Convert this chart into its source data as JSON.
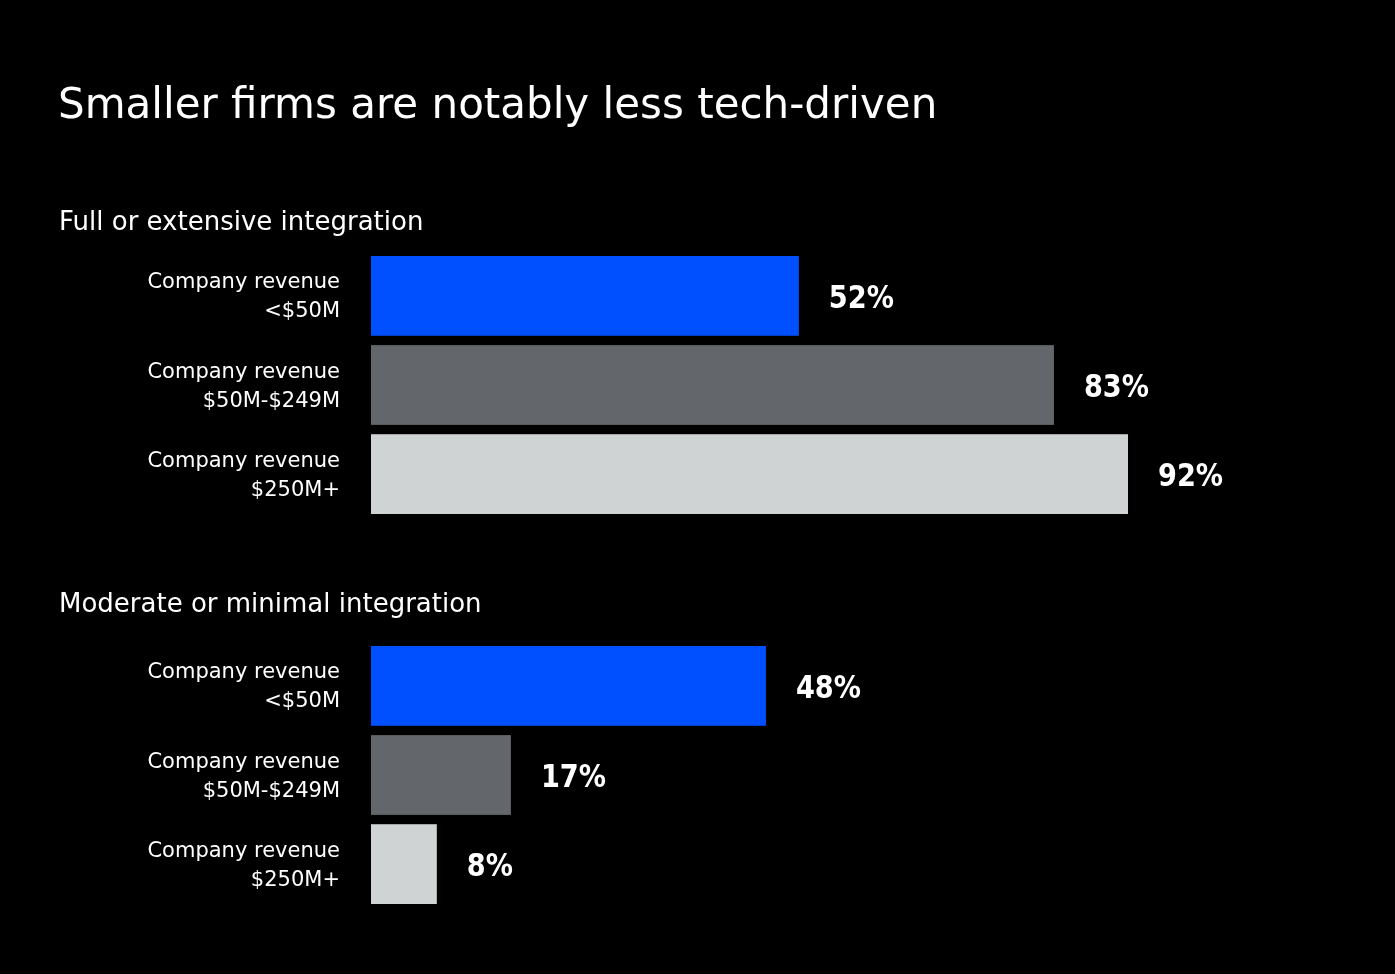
{
  "chart_data": [
    {
      "type": "bar",
      "orientation": "horizontal",
      "title": "Smaller firms are notably less tech-driven",
      "subtitle": "Full or extensive integration",
      "categories": [
        "Company revenue <$50M",
        "Company revenue $50M-$249M",
        "Company revenue $250M+"
      ],
      "values": [
        52,
        83,
        92
      ],
      "colors": [
        "#0050ff",
        "#63666a",
        "#d0d3d4"
      ],
      "value_labels": [
        "52%",
        "83%",
        "92%"
      ],
      "tick_labels": false
    },
    {
      "type": "bar",
      "orientation": "horizontal",
      "title": "Moderate or minimal integration",
      "categories": [
        "Company revenue <$50M",
        "Company revenue $50M-$249M",
        "Company revenue $250M+"
      ],
      "values": [
        48,
        17,
        8
      ],
      "colors": [
        "#0050ff",
        "#63666a",
        "#d0d3d4"
      ],
      "value_labels": [
        "48%",
        "17%",
        "8%"
      ],
      "tick_labels": false
    }
  ]
}
